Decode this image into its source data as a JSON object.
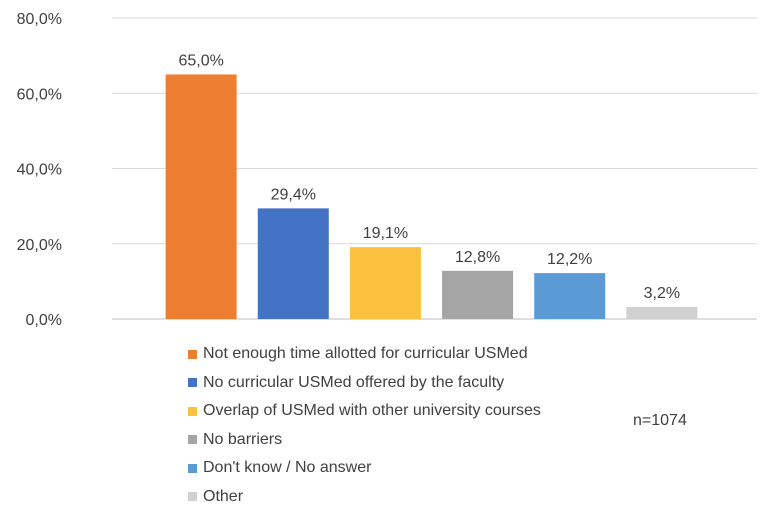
{
  "chart_data": {
    "type": "bar",
    "title": "",
    "xlabel": "",
    "ylabel": "",
    "ylim": [
      0,
      80
    ],
    "yticks": [
      "0,0%",
      "20,0%",
      "40,0%",
      "60,0%",
      "80,0%"
    ],
    "grid": true,
    "legend_position": "bottom",
    "categories": [
      "Not enough time allotted for curricular USMed",
      "No curricular USMed offered by the faculty",
      "Overlap of USMed with other university courses",
      "No barriers",
      "Don't know / No answer",
      "Other"
    ],
    "values": [
      65.0,
      29.4,
      19.1,
      12.8,
      12.2,
      3.2
    ],
    "value_labels": [
      "65,0%",
      "29,4%",
      "19,1%",
      "12,8%",
      "12,2%",
      "3,2%"
    ],
    "colors": [
      "#ED7D31",
      "#4472C4",
      "#FBC13F",
      "#A5A5A5",
      "#5B9BD5",
      "#D0D0D0"
    ],
    "annotation": "n=1074"
  }
}
